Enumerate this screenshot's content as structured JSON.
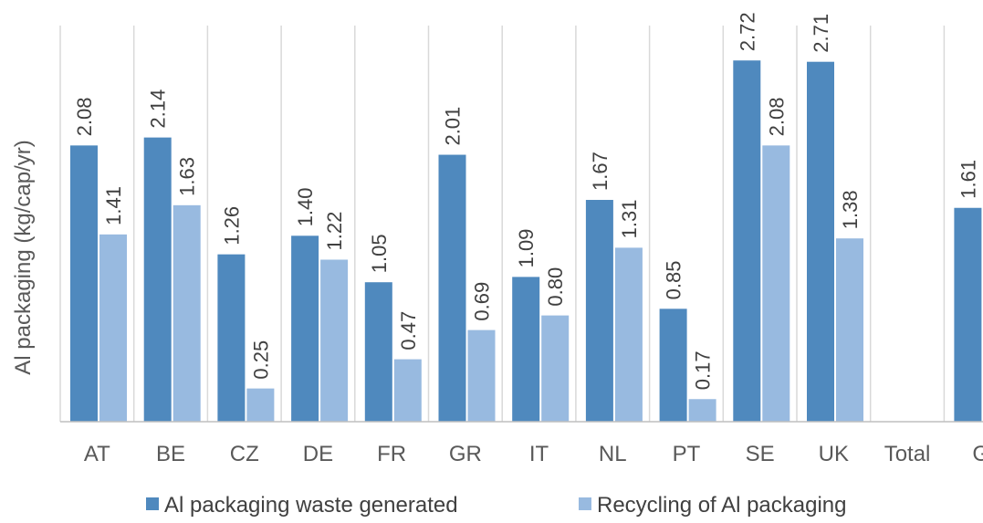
{
  "chart_data": {
    "type": "bar",
    "title": "",
    "ylabel": "Al packaging (kg/cap/yr)",
    "xlabel": "",
    "ylim": [
      0,
      2.9
    ],
    "categories": [
      "AT",
      "BE",
      "CZ",
      "DE",
      "FR",
      "GR",
      "IT",
      "NL",
      "PT",
      "SE",
      "UK",
      "Total",
      "G"
    ],
    "series": [
      {
        "name": "Al packaging waste generated",
        "color": "#4f89be",
        "values": [
          2.08,
          2.14,
          1.26,
          1.4,
          1.05,
          2.01,
          1.09,
          1.67,
          0.85,
          2.72,
          2.71,
          null,
          1.61
        ],
        "labels": [
          "2.08",
          "2.14",
          "1.26",
          "1.40",
          "1.05",
          "2.01",
          "1.09",
          "1.67",
          "0.85",
          "2.72",
          "2.71",
          "",
          "1.61"
        ]
      },
      {
        "name": "Recycling of Al packaging",
        "color": "#98bae0",
        "values": [
          1.41,
          1.63,
          0.25,
          1.22,
          0.47,
          0.69,
          0.8,
          1.31,
          0.17,
          2.08,
          1.38,
          null,
          null
        ],
        "labels": [
          "1.41",
          "1.63",
          "0.25",
          "1.22",
          "0.47",
          "0.69",
          "0.80",
          "1.31",
          "0.17",
          "2.08",
          "1.38",
          "",
          ""
        ]
      }
    ],
    "grid": "vertical category separators",
    "legend": "bottom"
  }
}
